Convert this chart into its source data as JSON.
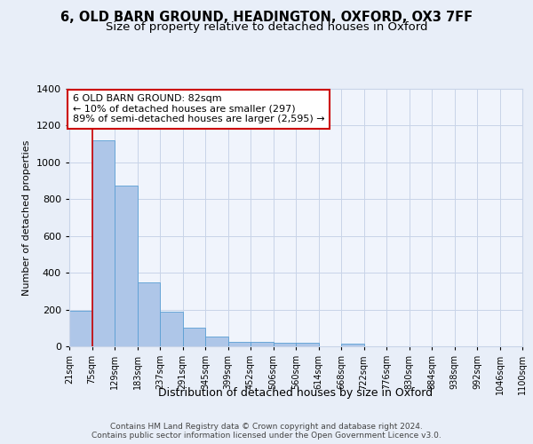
{
  "title1": "6, OLD BARN GROUND, HEADINGTON, OXFORD, OX3 7FF",
  "title2": "Size of property relative to detached houses in Oxford",
  "xlabel": "Distribution of detached houses by size in Oxford",
  "ylabel": "Number of detached properties",
  "bin_labels": [
    "21sqm",
    "75sqm",
    "129sqm",
    "183sqm",
    "237sqm",
    "291sqm",
    "345sqm",
    "399sqm",
    "452sqm",
    "506sqm",
    "560sqm",
    "614sqm",
    "668sqm",
    "722sqm",
    "776sqm",
    "830sqm",
    "884sqm",
    "938sqm",
    "992sqm",
    "1046sqm",
    "1100sqm"
  ],
  "bar_heights": [
    195,
    1120,
    875,
    350,
    190,
    100,
    55,
    25,
    25,
    20,
    20,
    0,
    15,
    0,
    0,
    0,
    0,
    0,
    0,
    0
  ],
  "bar_color": "#aec6e8",
  "bar_edgecolor": "#5a9fd4",
  "property_line_x": 1,
  "annotation_text": "6 OLD BARN GROUND: 82sqm\n← 10% of detached houses are smaller (297)\n89% of semi-detached houses are larger (2,595) →",
  "annotation_box_color": "#ffffff",
  "annotation_box_edgecolor": "#cc0000",
  "ylim": [
    0,
    1400
  ],
  "yticks": [
    0,
    200,
    400,
    600,
    800,
    1000,
    1200,
    1400
  ],
  "footer_text": "Contains HM Land Registry data © Crown copyright and database right 2024.\nContains public sector information licensed under the Open Government Licence v3.0.",
  "bg_color": "#e8eef8",
  "plot_bg_color": "#f0f4fc",
  "grid_color": "#c8d4e8",
  "title1_fontsize": 10.5,
  "title2_fontsize": 9.5,
  "red_line_color": "#cc0000"
}
